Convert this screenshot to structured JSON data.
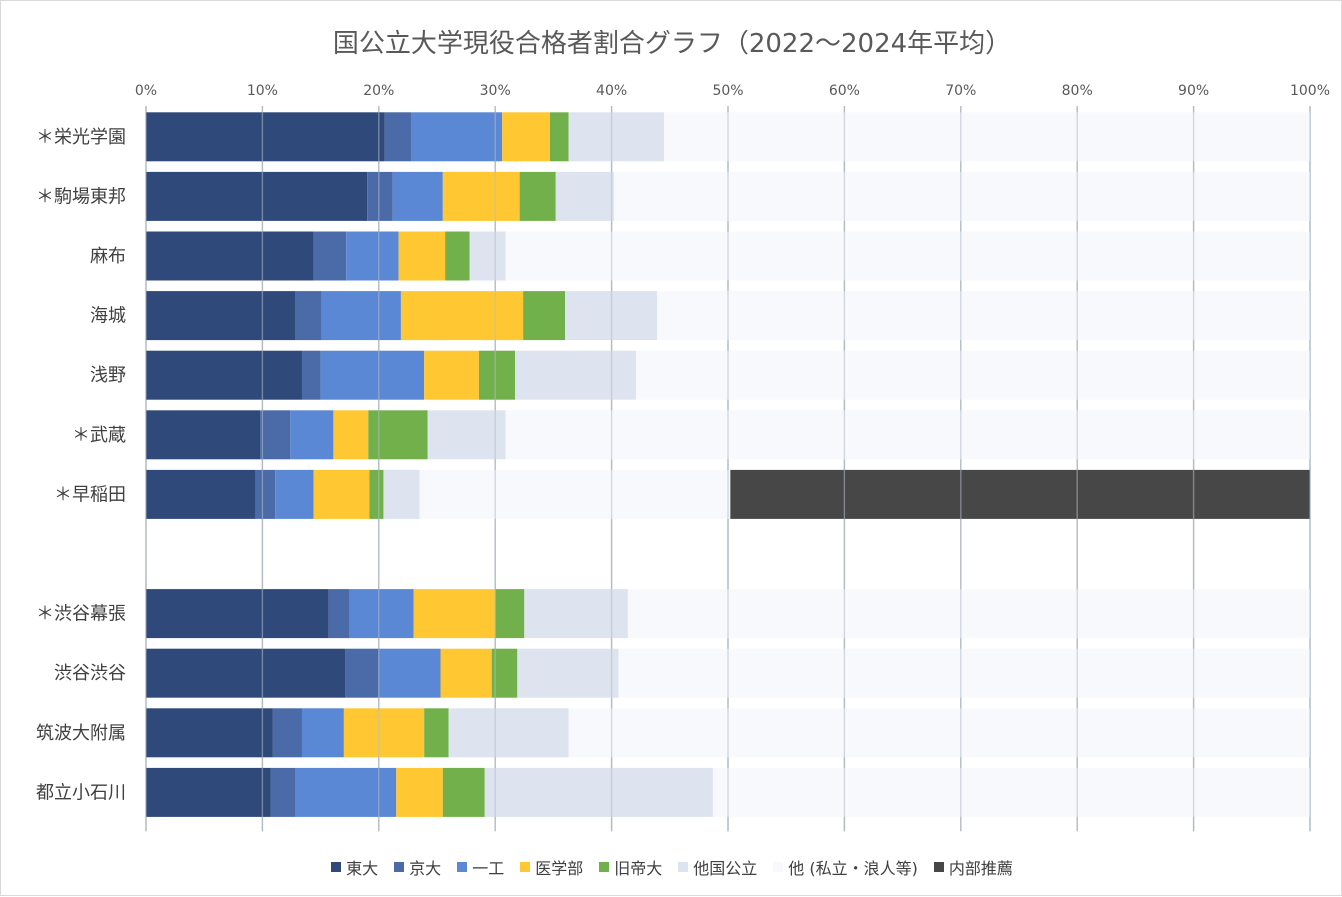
{
  "chart_data": {
    "type": "bar",
    "orientation": "horizontal",
    "stacked": true,
    "title": "国公立大学現役合格者割合グラフ（2022〜2024年平均）",
    "x_ticks": [
      "0%",
      "10%",
      "20%",
      "30%",
      "40%",
      "50%",
      "60%",
      "70%",
      "80%",
      "90%",
      "100%"
    ],
    "xlim": [
      0,
      100
    ],
    "grid": true,
    "legend_position": "bottom",
    "categories": [
      "＊栄光学園",
      "＊駒場東邦",
      "麻布",
      "海城",
      "浅野",
      "＊武蔵",
      "＊早稲田",
      "",
      "＊渋谷幕張",
      "渋谷渋谷",
      "筑波大附属",
      "都立小石川"
    ],
    "series": [
      {
        "name": "東大",
        "color": "#2F4A7A",
        "values": [
          20.5,
          19.0,
          14.4,
          12.8,
          13.4,
          9.8,
          9.4,
          0,
          15.7,
          17.1,
          10.9,
          10.7
        ]
      },
      {
        "name": "京大",
        "color": "#4A6AA8",
        "values": [
          2.3,
          2.2,
          2.8,
          2.3,
          1.6,
          2.6,
          1.7,
          0,
          1.8,
          2.9,
          2.5,
          2.1
        ]
      },
      {
        "name": "一工",
        "color": "#5B88D4",
        "values": [
          7.8,
          4.3,
          4.5,
          6.8,
          8.9,
          3.7,
          3.3,
          0,
          5.5,
          5.3,
          3.6,
          8.7
        ]
      },
      {
        "name": "医学部",
        "color": "#FFC832",
        "values": [
          4.1,
          6.6,
          4.0,
          10.5,
          4.7,
          3.0,
          4.8,
          0,
          7.0,
          4.4,
          6.9,
          4.0
        ]
      },
      {
        "name": "旧帝大",
        "color": "#72B04B",
        "values": [
          1.6,
          3.1,
          2.1,
          3.6,
          3.1,
          5.1,
          1.2,
          0,
          2.5,
          2.2,
          2.1,
          3.6
        ]
      },
      {
        "name": "他国公立",
        "color": "#DDE3EF",
        "values": [
          8.2,
          5.0,
          3.1,
          7.9,
          10.4,
          6.7,
          3.1,
          0,
          8.9,
          8.7,
          10.3,
          19.6
        ]
      },
      {
        "name": "他 (私立・浪人等)",
        "color": "#F7F9FD",
        "values": [
          55.5,
          59.8,
          69.1,
          56.1,
          57.9,
          69.1,
          26.7,
          0,
          58.6,
          59.4,
          63.7,
          51.3
        ]
      },
      {
        "name": "内部推薦",
        "color": "#474747",
        "values": [
          0,
          0,
          0,
          0,
          0,
          0,
          49.8,
          0,
          0,
          0,
          0,
          0
        ]
      }
    ]
  }
}
